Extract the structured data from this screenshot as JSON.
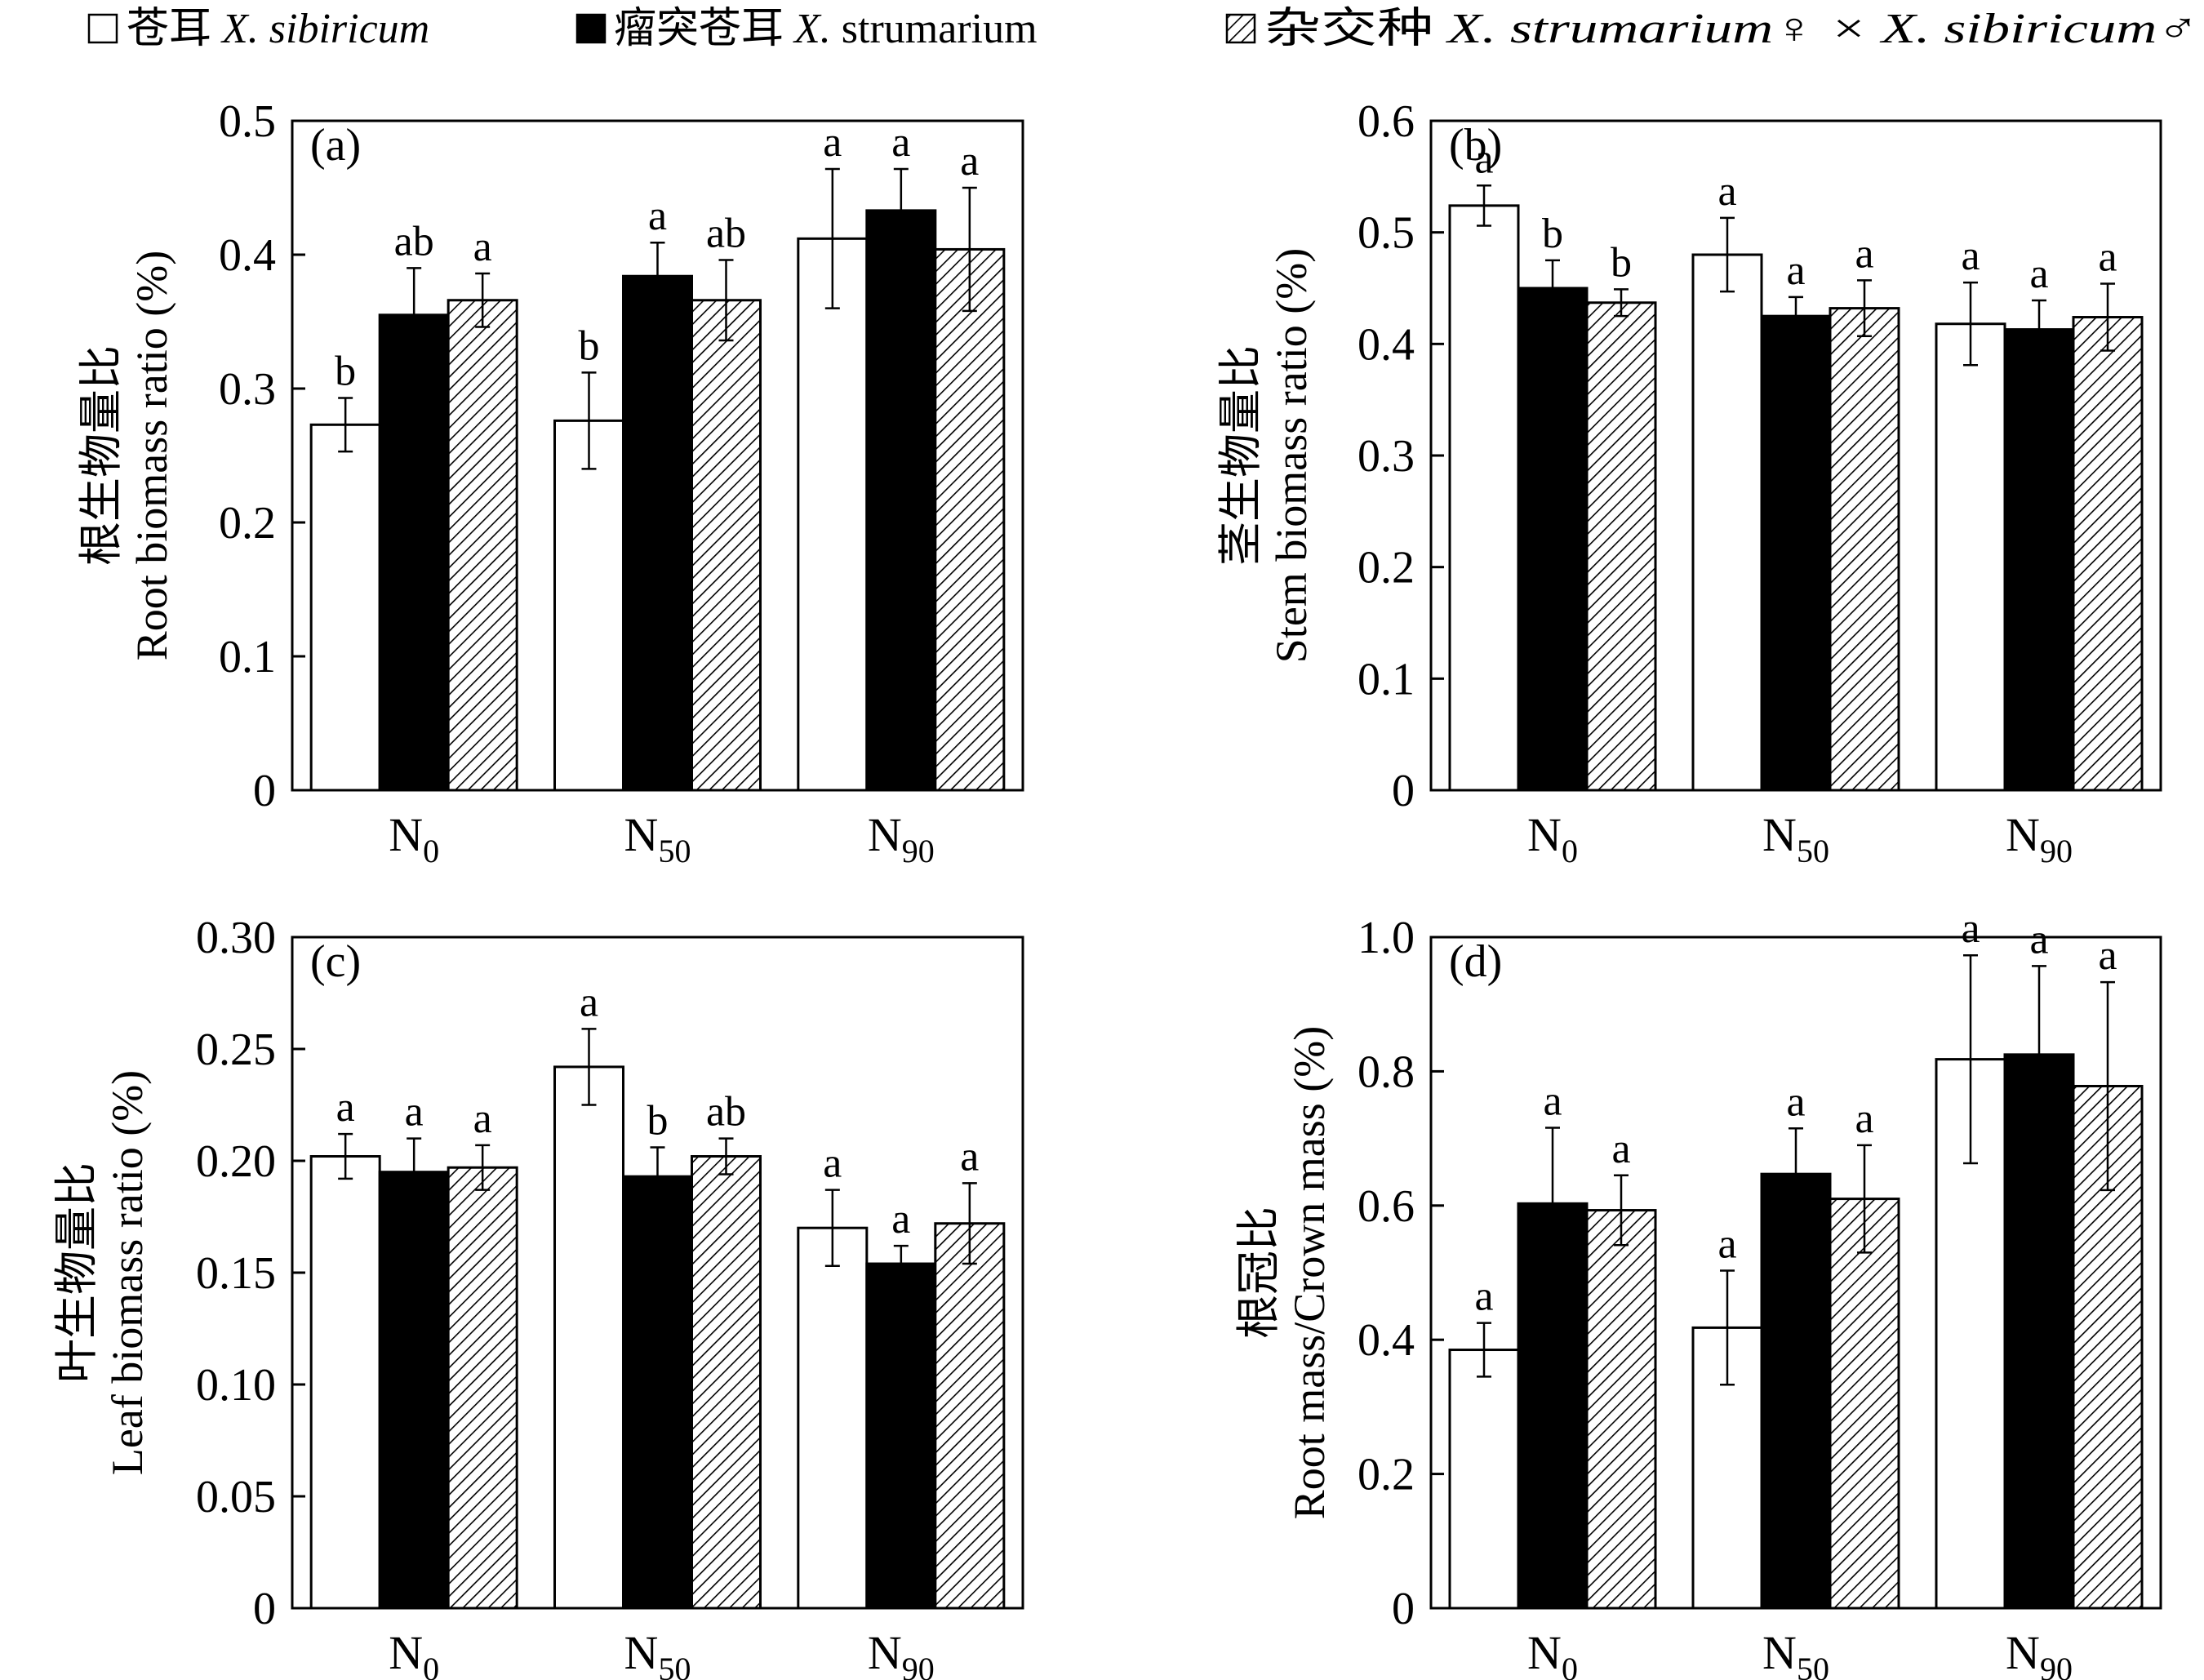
{
  "legend": [
    {
      "cn": "苍耳",
      "latin": "X. sibiricum",
      "fill": "white"
    },
    {
      "cn": "瘤突苍耳",
      "latin_italic": "X.",
      "latin_plain": " strumarium",
      "fill": "black"
    },
    {
      "cn": "杂交种",
      "latin": "X. strumarium♀ × X. sibiricum♂",
      "fill": "hatch"
    }
  ],
  "colors": {
    "bar_white": "#ffffff",
    "bar_black": "#000000",
    "hatch_line": "#000000",
    "axis": "#000000"
  },
  "chart_data": [
    {
      "type": "bar",
      "panel": "(a)",
      "ylabel_cn": "根生物量比",
      "ylabel": "Root biomass ratio (%)",
      "categories": [
        {
          "main": "N",
          "sub": "0"
        },
        {
          "main": "N",
          "sub": "50"
        },
        {
          "main": "N",
          "sub": "90"
        }
      ],
      "ylim": [
        0,
        0.5
      ],
      "yticks": [
        "0",
        "0.1",
        "0.2",
        "0.3",
        "0.4",
        "0.5"
      ],
      "series": [
        {
          "values": [
            0.273,
            0.276,
            0.412
          ],
          "errors": [
            0.02,
            0.036,
            0.052
          ],
          "letters": [
            "b",
            "b",
            "a"
          ]
        },
        {
          "values": [
            0.355,
            0.384,
            0.433
          ],
          "errors": [
            0.035,
            0.025,
            0.031
          ],
          "letters": [
            "ab",
            "a",
            "a"
          ]
        },
        {
          "values": [
            0.366,
            0.366,
            0.404
          ],
          "errors": [
            0.02,
            0.03,
            0.046
          ],
          "letters": [
            "a",
            "ab",
            "a"
          ]
        }
      ]
    },
    {
      "type": "bar",
      "panel": "(b)",
      "ylabel_cn": "茎生物量比",
      "ylabel": "Stem biomass ratio (%)",
      "categories": [
        {
          "main": "N",
          "sub": "0"
        },
        {
          "main": "N",
          "sub": "50"
        },
        {
          "main": "N",
          "sub": "90"
        }
      ],
      "ylim": [
        0,
        0.6
      ],
      "yticks": [
        "0",
        "0.1",
        "0.2",
        "0.3",
        "0.4",
        "0.5",
        "0.6"
      ],
      "series": [
        {
          "values": [
            0.524,
            0.48,
            0.418
          ],
          "errors": [
            0.018,
            0.033,
            0.037
          ],
          "letters": [
            "a",
            "a",
            "a"
          ]
        },
        {
          "values": [
            0.45,
            0.425,
            0.413
          ],
          "errors": [
            0.025,
            0.017,
            0.026
          ],
          "letters": [
            "b",
            "a",
            "a"
          ]
        },
        {
          "values": [
            0.437,
            0.432,
            0.424
          ],
          "errors": [
            0.012,
            0.025,
            0.03
          ],
          "letters": [
            "b",
            "a",
            "a"
          ]
        }
      ]
    },
    {
      "type": "bar",
      "panel": "(c)",
      "ylabel_cn": "叶生物量比",
      "ylabel": "Leaf biomass ratio (%)",
      "categories": [
        {
          "main": "N",
          "sub": "0"
        },
        {
          "main": "N",
          "sub": "50"
        },
        {
          "main": "N",
          "sub": "90"
        }
      ],
      "ylim": [
        0,
        0.3
      ],
      "yticks": [
        "0",
        "0.05",
        "0.10",
        "0.15",
        "0.20",
        "0.25",
        "0.30"
      ],
      "series": [
        {
          "values": [
            0.202,
            0.242,
            0.17
          ],
          "errors": [
            0.01,
            0.017,
            0.017
          ],
          "letters": [
            "a",
            "a",
            "a"
          ]
        },
        {
          "values": [
            0.195,
            0.193,
            0.154
          ],
          "errors": [
            0.015,
            0.013,
            0.008
          ],
          "letters": [
            "a",
            "b",
            "a"
          ]
        },
        {
          "values": [
            0.197,
            0.202,
            0.172
          ],
          "errors": [
            0.01,
            0.008,
            0.018
          ],
          "letters": [
            "a",
            "ab",
            "a"
          ]
        }
      ]
    },
    {
      "type": "bar",
      "panel": "(d)",
      "ylabel_cn": "根冠比",
      "ylabel": "Root mass/Crown mass (%)",
      "categories": [
        {
          "main": "N",
          "sub": "0"
        },
        {
          "main": "N",
          "sub": "50"
        },
        {
          "main": "N",
          "sub": "90"
        }
      ],
      "ylim": [
        0,
        1.0
      ],
      "yticks": [
        "0",
        "0.2",
        "0.4",
        "0.6",
        "0.8",
        "1.0"
      ],
      "series": [
        {
          "values": [
            0.385,
            0.418,
            0.818
          ],
          "errors": [
            0.04,
            0.085,
            0.155
          ],
          "letters": [
            "a",
            "a",
            "a"
          ]
        },
        {
          "values": [
            0.603,
            0.647,
            0.825
          ],
          "errors": [
            0.113,
            0.068,
            0.132
          ],
          "letters": [
            "a",
            "a",
            "a"
          ]
        },
        {
          "values": [
            0.593,
            0.61,
            0.778
          ],
          "errors": [
            0.052,
            0.08,
            0.155
          ],
          "letters": [
            "a",
            "a",
            "a"
          ]
        }
      ]
    }
  ]
}
